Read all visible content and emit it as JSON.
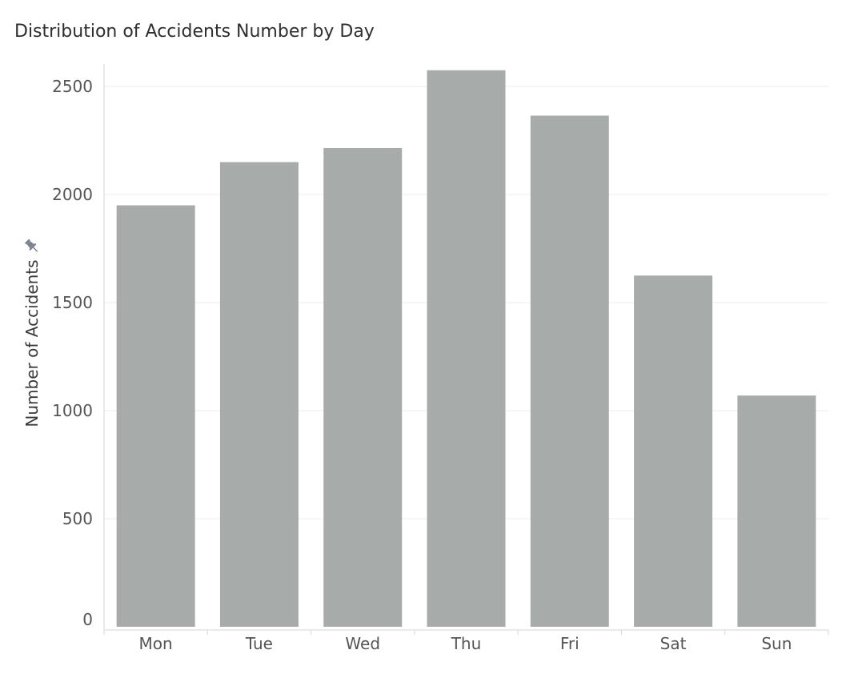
{
  "chart_data": {
    "type": "bar",
    "title": "Distribution of Accidents Number by Day",
    "xlabel": "",
    "ylabel": "Number of Accidents",
    "categories": [
      "Mon",
      "Tue",
      "Wed",
      "Thu",
      "Fri",
      "Sat",
      "Sun"
    ],
    "values": [
      1950,
      2150,
      2215,
      2575,
      2365,
      1625,
      1070
    ],
    "ylim": [
      0,
      2600
    ],
    "yticks": [
      0,
      500,
      1000,
      1500,
      2000,
      2500
    ],
    "ytick_labels": [
      "0",
      "500",
      "1000",
      "1500",
      "2000",
      "2500"
    ],
    "grid": true,
    "legend": "none",
    "bar_color": "#a7acab",
    "grid_color": "#ececec",
    "axis_color": "#d6d6d6"
  },
  "icons": {
    "ylabel_icon": "pin-icon"
  }
}
